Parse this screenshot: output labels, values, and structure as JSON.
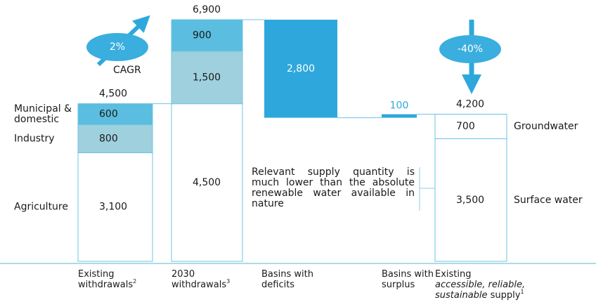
{
  "chart_data": {
    "type": "waterfall",
    "columns": [
      {
        "label": [
          [
            {
              "text": "Existing"
            }
          ],
          [
            {
              "text": "withdrawals"
            },
            {
              "text": "2",
              "sup": true
            }
          ]
        ],
        "total": {
          "value": 4500,
          "label": "4,500"
        },
        "names": "left",
        "segments": [
          {
            "name": [
              "Agriculture"
            ],
            "value": 3100,
            "value_label": "3,100",
            "color": "#ffffff"
          },
          {
            "name": [
              "Industry"
            ],
            "value": 800,
            "value_label": "800",
            "color": "#9fd0de"
          },
          {
            "name": [
              "Municipal &",
              "domestic"
            ],
            "value": 600,
            "value_label": "600",
            "color": "#5bbde0"
          }
        ]
      },
      {
        "label": [
          [
            {
              "text": "2030"
            }
          ],
          [
            {
              "text": "withdrawals"
            },
            {
              "text": "3",
              "sup": true
            }
          ]
        ],
        "total": {
          "value": 6900,
          "label": "6,900"
        },
        "segments": [
          {
            "value": 4500,
            "value_label": "4,500",
            "color": "#ffffff"
          },
          {
            "value": 1500,
            "value_label": "1,500",
            "color": "#9fd0de"
          },
          {
            "value": 900,
            "value_label": "900",
            "color": "#5bbde0"
          }
        ]
      },
      {
        "label": [
          [
            {
              "text": "Basins with"
            }
          ],
          [
            {
              "text": "deficits"
            }
          ]
        ],
        "change": {
          "value": -2800,
          "label": "2,800",
          "color": "#2ea8dc"
        }
      },
      {
        "label": [
          [
            {
              "text": "Basins with"
            }
          ],
          [
            {
              "text": "surplus"
            }
          ]
        ],
        "change": {
          "value": 100,
          "label": "100",
          "color": "#2ea8dc"
        }
      },
      {
        "label": [
          [
            {
              "text": "Existing"
            }
          ],
          [
            {
              "text": "accessible, reliable,",
              "italic": true
            }
          ],
          [
            {
              "text": "sustainable",
              "italic": true
            },
            {
              "text": " supply"
            },
            {
              "text": "1",
              "sup": true
            }
          ]
        ],
        "total": {
          "value": 4200,
          "label": "4,200"
        },
        "names": "right",
        "segments": [
          {
            "name": [
              "Surface water"
            ],
            "value": 3500,
            "value_label": "3,500",
            "color": "#ffffff"
          },
          {
            "name": [
              "Groundwater"
            ],
            "value": 700,
            "value_label": "700",
            "color": "#ffffff"
          }
        ]
      }
    ],
    "annotations": {
      "growth": {
        "label": "2%",
        "text": "CAGR"
      },
      "decline": {
        "label": "-40%"
      },
      "note": "Relevant supply quantity is much lower than the absolute renewable water available in nature"
    }
  }
}
